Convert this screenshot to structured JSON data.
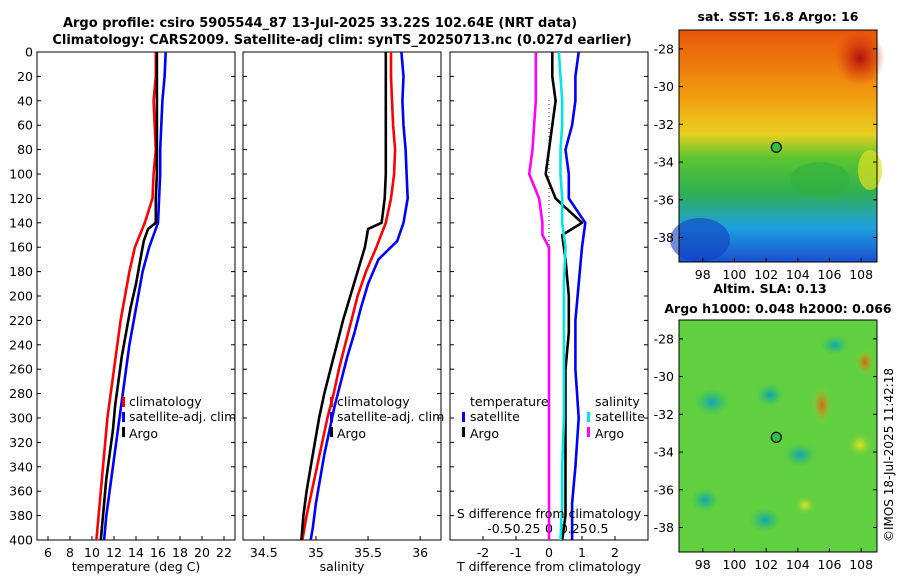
{
  "header": {
    "title_line1": "Argo profile: csiro 5905544_87 13-Jul-2025 33.22S 102.64E (NRT data)",
    "title_line2": "Climatology: CARS2009. Satellite-adj clim: synTS_20250713.nc (0.027d earlier)"
  },
  "colors": {
    "climatology": "#ff0000",
    "satellite": "#0000ff",
    "argo": "#000000",
    "sat_salinity": "#00e5e5",
    "argo_salinity_diff": "#ff00ff"
  },
  "chart_data": [
    {
      "type": "line",
      "name": "temperature",
      "xlabel": "temperature (deg C)",
      "ylabel": "",
      "xlim": [
        5,
        23
      ],
      "ylim": [
        0,
        400
      ],
      "y_reversed": true,
      "xticks": [
        6,
        8,
        10,
        12,
        14,
        16,
        18,
        20,
        22
      ],
      "yticks": [
        0,
        20,
        40,
        60,
        80,
        100,
        120,
        140,
        160,
        180,
        200,
        220,
        240,
        260,
        280,
        300,
        320,
        340,
        360,
        380,
        400
      ],
      "legend": [
        "climatology",
        "satellite-adj. clim",
        "Argo"
      ],
      "legend_location": "lower-right",
      "series": [
        {
          "name": "climatology",
          "color": "#ff0000",
          "points": [
            [
              15.8,
              0
            ],
            [
              15.8,
              20
            ],
            [
              15.6,
              40
            ],
            [
              15.7,
              60
            ],
            [
              15.8,
              80
            ],
            [
              15.6,
              100
            ],
            [
              15.5,
              120
            ],
            [
              14.8,
              140
            ],
            [
              13.9,
              160
            ],
            [
              13.4,
              180
            ],
            [
              13.0,
              200
            ],
            [
              12.6,
              220
            ],
            [
              12.3,
              240
            ],
            [
              12.0,
              260
            ],
            [
              11.7,
              280
            ],
            [
              11.4,
              300
            ],
            [
              11.2,
              320
            ],
            [
              11.0,
              340
            ],
            [
              10.8,
              360
            ],
            [
              10.6,
              380
            ],
            [
              10.4,
              400
            ]
          ]
        },
        {
          "name": "satellite-adj. clim",
          "color": "#0000ff",
          "points": [
            [
              16.7,
              0
            ],
            [
              16.6,
              20
            ],
            [
              16.4,
              40
            ],
            [
              16.3,
              60
            ],
            [
              16.2,
              80
            ],
            [
              16.2,
              100
            ],
            [
              16.1,
              120
            ],
            [
              16.0,
              140
            ],
            [
              15.2,
              160
            ],
            [
              14.6,
              180
            ],
            [
              14.2,
              200
            ],
            [
              13.8,
              220
            ],
            [
              13.4,
              240
            ],
            [
              13.1,
              260
            ],
            [
              12.8,
              280
            ],
            [
              12.5,
              300
            ],
            [
              12.2,
              320
            ],
            [
              11.9,
              340
            ],
            [
              11.6,
              360
            ],
            [
              11.3,
              380
            ],
            [
              11.1,
              400
            ]
          ]
        },
        {
          "name": "Argo",
          "color": "#000000",
          "points": [
            [
              15.9,
              0
            ],
            [
              15.9,
              20
            ],
            [
              15.9,
              40
            ],
            [
              15.9,
              60
            ],
            [
              15.9,
              80
            ],
            [
              15.9,
              100
            ],
            [
              15.8,
              120
            ],
            [
              15.8,
              140
            ],
            [
              15.1,
              145
            ],
            [
              14.7,
              155
            ],
            [
              14.4,
              170
            ],
            [
              14.0,
              190
            ],
            [
              13.5,
              210
            ],
            [
              13.1,
              230
            ],
            [
              12.7,
              250
            ],
            [
              12.4,
              270
            ],
            [
              12.1,
              290
            ],
            [
              11.9,
              310
            ],
            [
              11.6,
              330
            ],
            [
              11.3,
              350
            ],
            [
              11.1,
              370
            ],
            [
              10.9,
              390
            ],
            [
              10.8,
              400
            ]
          ]
        }
      ]
    },
    {
      "type": "line",
      "name": "salinity",
      "xlabel": "salinity",
      "ylabel": "",
      "xlim": [
        34.3,
        36.2
      ],
      "ylim": [
        0,
        400
      ],
      "y_reversed": true,
      "xticks": [
        34.5,
        35,
        35.5,
        36
      ],
      "xtick_labels": [
        "34.5",
        "35",
        "35.5",
        "36"
      ],
      "legend": [
        "climatology",
        "satellite-adj. clim",
        "Argo"
      ],
      "legend_location": "lower-right",
      "series": [
        {
          "name": "climatology",
          "color": "#ff0000",
          "points": [
            [
              35.72,
              0
            ],
            [
              35.72,
              20
            ],
            [
              35.73,
              40
            ],
            [
              35.74,
              60
            ],
            [
              35.76,
              80
            ],
            [
              35.75,
              100
            ],
            [
              35.72,
              120
            ],
            [
              35.67,
              140
            ],
            [
              35.58,
              160
            ],
            [
              35.48,
              180
            ],
            [
              35.4,
              200
            ],
            [
              35.34,
              220
            ],
            [
              35.28,
              240
            ],
            [
              35.22,
              260
            ],
            [
              35.17,
              280
            ],
            [
              35.11,
              300
            ],
            [
              35.06,
              320
            ],
            [
              35.01,
              340
            ],
            [
              34.96,
              360
            ],
            [
              34.91,
              380
            ],
            [
              34.87,
              400
            ]
          ]
        },
        {
          "name": "satellite-adj. clim",
          "color": "#0000ff",
          "points": [
            [
              35.82,
              0
            ],
            [
              35.84,
              20
            ],
            [
              35.83,
              40
            ],
            [
              35.84,
              60
            ],
            [
              35.86,
              80
            ],
            [
              35.87,
              100
            ],
            [
              35.88,
              120
            ],
            [
              35.84,
              140
            ],
            [
              35.78,
              155
            ],
            [
              35.6,
              170
            ],
            [
              35.5,
              190
            ],
            [
              35.43,
              210
            ],
            [
              35.37,
              230
            ],
            [
              35.3,
              250
            ],
            [
              35.24,
              270
            ],
            [
              35.18,
              290
            ],
            [
              35.13,
              310
            ],
            [
              35.08,
              330
            ],
            [
              35.04,
              350
            ],
            [
              35.0,
              370
            ],
            [
              34.97,
              390
            ],
            [
              34.95,
              400
            ]
          ]
        },
        {
          "name": "Argo",
          "color": "#000000",
          "points": [
            [
              35.67,
              0
            ],
            [
              35.67,
              20
            ],
            [
              35.67,
              40
            ],
            [
              35.67,
              60
            ],
            [
              35.67,
              80
            ],
            [
              35.67,
              100
            ],
            [
              35.66,
              120
            ],
            [
              35.63,
              140
            ],
            [
              35.5,
              145
            ],
            [
              35.47,
              160
            ],
            [
              35.4,
              180
            ],
            [
              35.33,
              200
            ],
            [
              35.26,
              220
            ],
            [
              35.2,
              240
            ],
            [
              35.14,
              260
            ],
            [
              35.08,
              280
            ],
            [
              35.03,
              300
            ],
            [
              34.99,
              320
            ],
            [
              34.95,
              340
            ],
            [
              34.91,
              360
            ],
            [
              34.88,
              380
            ],
            [
              34.86,
              400
            ]
          ]
        }
      ]
    },
    {
      "type": "line",
      "name": "differences",
      "xlabel": "T difference from climatology",
      "xlabel_top": "S difference from climatology",
      "xlim": [
        -3,
        3
      ],
      "ylim": [
        0,
        400
      ],
      "y_reversed": true,
      "xticks": [
        -2,
        -1,
        0,
        1,
        2
      ],
      "xtick_labels": [
        "-2",
        "-1",
        "0",
        "1",
        "2"
      ],
      "top_ticks": [
        -1.5,
        -0.75,
        0,
        0.75,
        1.5
      ],
      "top_tick_labels": [
        "-0.5",
        "-0.25",
        "0",
        "0.25",
        "0.5"
      ],
      "legend_left_title": "temperature",
      "legend_right_title": "salinity",
      "legend_left": [
        "satellite",
        "Argo"
      ],
      "legend_right": [
        "satellite",
        "Argo"
      ],
      "series": [
        {
          "name": "T satellite",
          "color": "#0000ff",
          "points": [
            [
              0.9,
              0
            ],
            [
              0.8,
              20
            ],
            [
              0.8,
              40
            ],
            [
              0.7,
              60
            ],
            [
              0.5,
              80
            ],
            [
              0.6,
              100
            ],
            [
              0.6,
              120
            ],
            [
              1.1,
              140
            ],
            [
              1.0,
              160
            ],
            [
              0.9,
              190
            ],
            [
              0.8,
              220
            ],
            [
              0.8,
              260
            ],
            [
              0.9,
              300
            ],
            [
              0.8,
              340
            ],
            [
              0.7,
              370
            ],
            [
              0.7,
              400
            ]
          ]
        },
        {
          "name": "T Argo",
          "color": "#000000",
          "points": [
            [
              0.1,
              0
            ],
            [
              0.1,
              20
            ],
            [
              0.2,
              40
            ],
            [
              0.1,
              60
            ],
            [
              0.0,
              80
            ],
            [
              -0.1,
              100
            ],
            [
              0.2,
              120
            ],
            [
              1.0,
              140
            ],
            [
              0.4,
              150
            ],
            [
              0.5,
              170
            ],
            [
              0.6,
              200
            ],
            [
              0.6,
              230
            ],
            [
              0.5,
              260
            ],
            [
              0.5,
              300
            ],
            [
              0.5,
              340
            ],
            [
              0.5,
              380
            ],
            [
              0.4,
              400
            ]
          ]
        },
        {
          "name": "S satellite",
          "color": "#00e5e5",
          "points": [
            [
              0.3,
              0
            ],
            [
              0.35,
              20
            ],
            [
              0.4,
              40
            ],
            [
              0.4,
              60
            ],
            [
              0.35,
              80
            ],
            [
              0.35,
              100
            ],
            [
              0.4,
              120
            ],
            [
              0.4,
              140
            ],
            [
              0.5,
              160
            ],
            [
              0.45,
              190
            ],
            [
              0.45,
              220
            ],
            [
              0.45,
              260
            ],
            [
              0.45,
              300
            ],
            [
              0.4,
              340
            ],
            [
              0.4,
              370
            ],
            [
              0.35,
              400
            ]
          ]
        },
        {
          "name": "S Argo",
          "color": "#ff00ff",
          "points": [
            [
              -0.4,
              0
            ],
            [
              -0.4,
              20
            ],
            [
              -0.4,
              40
            ],
            [
              -0.45,
              60
            ],
            [
              -0.5,
              80
            ],
            [
              -0.6,
              100
            ],
            [
              -0.3,
              120
            ],
            [
              -0.2,
              140
            ],
            [
              -0.2,
              150
            ],
            [
              0.0,
              160
            ],
            [
              0.0,
              190
            ],
            [
              0.0,
              220
            ],
            [
              0.0,
              260
            ],
            [
              0.0,
              300
            ],
            [
              0.0,
              340
            ],
            [
              0.0,
              370
            ],
            [
              0.0,
              400
            ]
          ]
        }
      ]
    },
    {
      "type": "heatmap",
      "name": "sst_map",
      "title": "sat. SST: 16.8 Argo: 16",
      "xlim": [
        96.5,
        109
      ],
      "ylim": [
        -39.3,
        -27
      ],
      "xticks": [
        98,
        100,
        102,
        104,
        106,
        108
      ],
      "yticks": [
        -28,
        -30,
        -32,
        -34,
        -36,
        -38
      ],
      "marker": {
        "lon": 102.64,
        "lat": -33.22
      }
    },
    {
      "type": "heatmap",
      "name": "sla_map",
      "title_line1": "Altim. SLA: 0.13",
      "title_line2": "Argo h1000: 0.048 h2000: 0.066",
      "xlim": [
        96.5,
        109
      ],
      "ylim": [
        -39.3,
        -27
      ],
      "xticks": [
        98,
        100,
        102,
        104,
        106,
        108
      ],
      "yticks": [
        -28,
        -30,
        -32,
        -34,
        -36,
        -38
      ],
      "marker": {
        "lon": 102.64,
        "lat": -33.22
      }
    }
  ],
  "footer": {
    "credit": "©IMOS 18-Jul-2025 11:42:18"
  }
}
